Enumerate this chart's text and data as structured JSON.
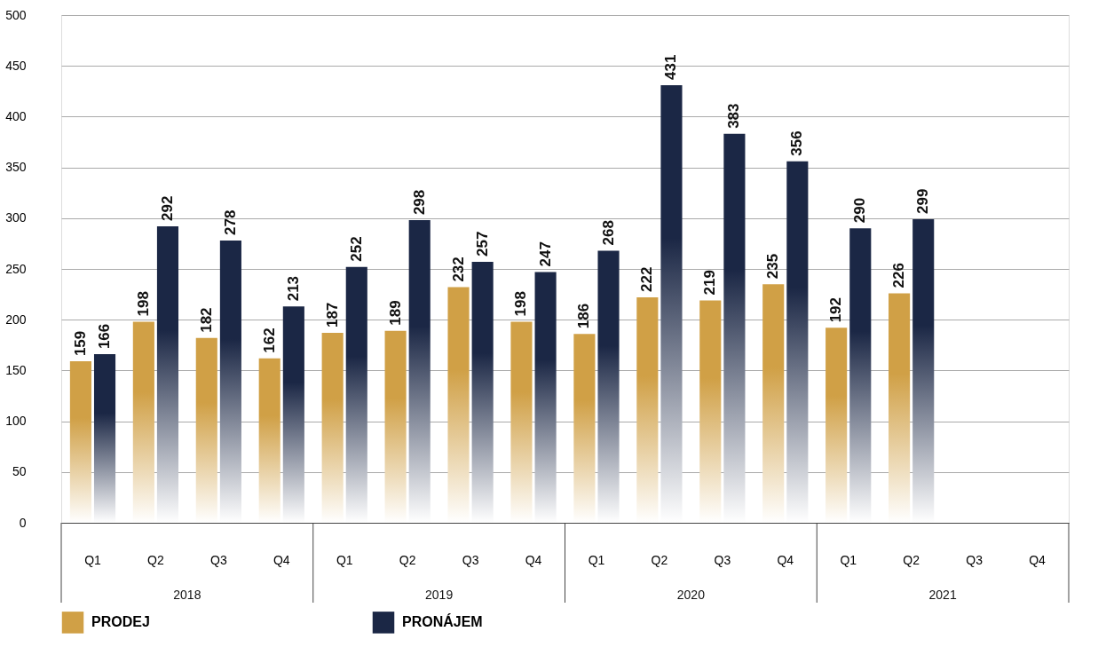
{
  "chart_data": {
    "type": "bar",
    "categories": [
      "Q1",
      "Q2",
      "Q3",
      "Q4",
      "Q1",
      "Q2",
      "Q3",
      "Q4",
      "Q1",
      "Q2",
      "Q3",
      "Q4",
      "Q1",
      "Q2",
      "Q3",
      "Q4"
    ],
    "annotations": [
      "2018",
      "2019",
      "2020",
      "2021"
    ],
    "series": [
      {
        "name": "PRODEJ",
        "color": "#d0a046",
        "values": [
          159,
          198,
          182,
          162,
          187,
          189,
          232,
          198,
          186,
          222,
          219,
          235,
          192,
          226,
          null,
          null
        ]
      },
      {
        "name": "PRONÁJEM",
        "color": "#1b2745",
        "values": [
          166,
          292,
          278,
          213,
          252,
          298,
          257,
          247,
          268,
          431,
          383,
          356,
          290,
          299,
          null,
          null
        ]
      }
    ],
    "ylim": [
      0,
      500
    ],
    "yticks": [
      0,
      50,
      100,
      150,
      200,
      250,
      300,
      350,
      400,
      450,
      500
    ],
    "grid": "y",
    "legend": "bottom",
    "data_labels": true
  }
}
